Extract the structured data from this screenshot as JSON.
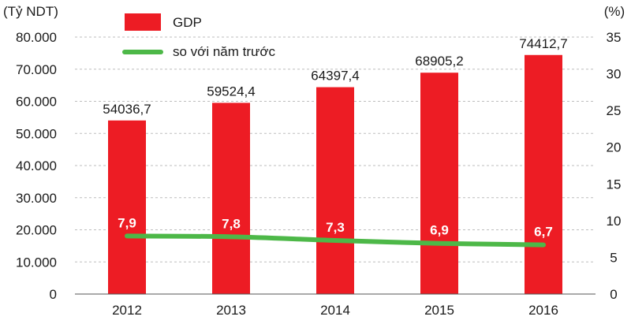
{
  "chart_data": {
    "type": "bar",
    "categories": [
      "2012",
      "2013",
      "2014",
      "2015",
      "2016"
    ],
    "series": [
      {
        "name": "GDP",
        "type": "bar",
        "axis": "left",
        "color": "#ED1C24",
        "values": [
          54036.7,
          59524.4,
          64397.4,
          68905.2,
          74412.7
        ],
        "labels": [
          "54036,7",
          "59524,4",
          "64397,4",
          "68905,2",
          "74412,7"
        ]
      },
      {
        "name": "so với năm trước",
        "type": "line",
        "axis": "right",
        "color": "#4DB848",
        "values": [
          7.9,
          7.8,
          7.3,
          6.9,
          6.7
        ],
        "labels": [
          "7,9",
          "7,8",
          "7,3",
          "6,9",
          "6,7"
        ]
      }
    ],
    "y_left": {
      "unit": "(Tỷ NDT)",
      "ylim": [
        0,
        80000
      ],
      "ticks": [
        0,
        10000,
        20000,
        30000,
        40000,
        50000,
        60000,
        70000,
        80000
      ],
      "tick_labels": [
        "0",
        "10.000",
        "20.000",
        "30.000",
        "40.000",
        "50.000",
        "60.000",
        "70.000",
        "80.000"
      ]
    },
    "y_right": {
      "unit": "(%)",
      "ylim": [
        0,
        35
      ],
      "ticks": [
        0,
        5,
        10,
        15,
        20,
        25,
        30,
        35
      ],
      "tick_labels": [
        "0",
        "5",
        "10",
        "15",
        "20",
        "25",
        "30",
        "35"
      ]
    },
    "grid": "horizontal-dashed",
    "legend": "top-left"
  }
}
